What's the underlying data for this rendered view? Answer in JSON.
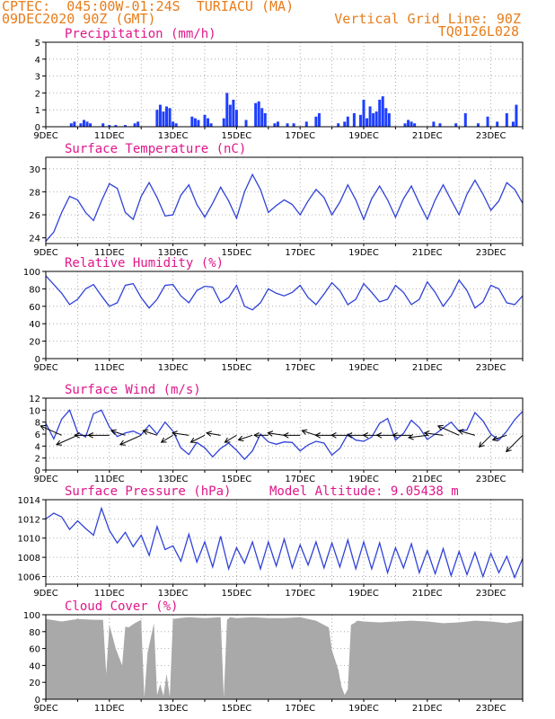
{
  "header": {
    "line1": "CPTEC:  045:00W-01:24S  TURIACU (MA)",
    "line2": "09DEC2020 90Z (GMT)",
    "right1": "Vertical Grid Line: 90Z",
    "right2": "TQ0126L028"
  },
  "colors": {
    "header": "#e87d1a",
    "title": "#e0178a",
    "line": "#2f42d8",
    "bar": "#1f3fff",
    "cloud": "#a9a9a9",
    "arrow": "#000000"
  },
  "x_tick_labels": [
    "9DEC",
    "11DEC",
    "13DEC",
    "15DEC",
    "17DEC",
    "19DEC",
    "21DEC",
    "23DEC"
  ],
  "chart_data": [
    {
      "type": "bar",
      "title": "Precipitation (mm/h)",
      "ylim": [
        0,
        5
      ],
      "yticks": [
        0,
        1,
        2,
        3,
        4,
        5
      ],
      "x_range_days": [
        9,
        24
      ],
      "x": [
        9.8,
        9.9,
        10.1,
        10.2,
        10.3,
        10.4,
        10.8,
        11.0,
        11.2,
        11.5,
        11.8,
        11.9,
        12.5,
        12.6,
        12.7,
        12.8,
        12.9,
        13.0,
        13.1,
        13.6,
        13.7,
        13.8,
        14.0,
        14.1,
        14.2,
        14.6,
        14.7,
        14.8,
        14.9,
        15.0,
        15.3,
        15.6,
        15.7,
        15.8,
        15.9,
        16.2,
        16.3,
        16.6,
        16.8,
        17.2,
        17.5,
        17.6,
        18.2,
        18.4,
        18.5,
        18.7,
        18.9,
        19.0,
        19.1,
        19.2,
        19.3,
        19.4,
        19.5,
        19.6,
        19.7,
        19.8,
        20.3,
        20.4,
        20.5,
        20.6,
        21.2,
        21.4,
        21.9,
        22.2,
        22.6,
        22.9,
        23.2,
        23.5,
        23.7,
        23.8
      ],
      "values": [
        0.2,
        0.3,
        0.2,
        0.4,
        0.3,
        0.2,
        0.2,
        0.1,
        0.1,
        0.1,
        0.2,
        0.3,
        1.0,
        1.3,
        0.9,
        1.2,
        1.1,
        0.3,
        0.2,
        0.6,
        0.5,
        0.4,
        0.7,
        0.5,
        0.2,
        0.5,
        2.0,
        1.3,
        1.6,
        1.0,
        0.4,
        1.4,
        1.5,
        1.1,
        0.8,
        0.2,
        0.3,
        0.2,
        0.2,
        0.3,
        0.6,
        0.8,
        0.2,
        0.3,
        0.6,
        0.8,
        0.7,
        1.6,
        0.5,
        1.2,
        0.8,
        0.9,
        1.6,
        1.8,
        1.1,
        0.8,
        0.2,
        0.4,
        0.3,
        0.2,
        0.3,
        0.2,
        0.2,
        0.8,
        0.2,
        0.6,
        0.3,
        0.8,
        0.3,
        1.3
      ]
    },
    {
      "type": "line",
      "title": "Surface Temperature (nC)",
      "ylim": [
        23.5,
        31
      ],
      "yticks": [
        24,
        26,
        28,
        30
      ],
      "x": [
        9.0,
        9.25,
        9.5,
        9.75,
        10.0,
        10.25,
        10.5,
        10.75,
        11.0,
        11.25,
        11.5,
        11.75,
        12.0,
        12.25,
        12.5,
        12.75,
        13.0,
        13.25,
        13.5,
        13.75,
        14.0,
        14.25,
        14.5,
        14.75,
        15.0,
        15.25,
        15.5,
        15.75,
        16.0,
        16.25,
        16.5,
        16.75,
        17.0,
        17.25,
        17.5,
        17.75,
        18.0,
        18.25,
        18.5,
        18.75,
        19.0,
        19.25,
        19.5,
        19.75,
        20.0,
        20.25,
        20.5,
        20.75,
        21.0,
        21.25,
        21.5,
        21.75,
        22.0,
        22.25,
        22.5,
        22.75,
        23.0,
        23.25,
        23.5,
        23.75,
        24.0
      ],
      "values": [
        23.7,
        24.5,
        26.2,
        27.6,
        27.3,
        26.2,
        25.5,
        27.2,
        28.7,
        28.3,
        26.2,
        25.6,
        27.6,
        28.8,
        27.5,
        25.9,
        26.0,
        27.7,
        28.6,
        26.9,
        25.8,
        27.0,
        28.4,
        27.2,
        25.7,
        28.0,
        29.5,
        28.2,
        26.2,
        26.8,
        27.3,
        26.9,
        26.0,
        27.2,
        28.2,
        27.5,
        26.0,
        27.1,
        28.6,
        27.3,
        25.6,
        27.4,
        28.5,
        27.3,
        25.8,
        27.4,
        28.5,
        27.0,
        25.6,
        27.3,
        28.6,
        27.3,
        26.0,
        27.8,
        29.0,
        27.8,
        26.4,
        27.2,
        28.8,
        28.2,
        27.0
      ]
    },
    {
      "type": "line",
      "title": "Relative Humidity (%)",
      "ylim": [
        0,
        100
      ],
      "yticks": [
        0,
        20,
        40,
        60,
        80,
        100
      ],
      "x": [
        9.0,
        9.25,
        9.5,
        9.75,
        10.0,
        10.25,
        10.5,
        10.75,
        11.0,
        11.25,
        11.5,
        11.75,
        12.0,
        12.25,
        12.5,
        12.75,
        13.0,
        13.25,
        13.5,
        13.75,
        14.0,
        14.25,
        14.5,
        14.75,
        15.0,
        15.25,
        15.5,
        15.75,
        16.0,
        16.25,
        16.5,
        16.75,
        17.0,
        17.25,
        17.5,
        17.75,
        18.0,
        18.25,
        18.5,
        18.75,
        19.0,
        19.25,
        19.5,
        19.75,
        20.0,
        20.25,
        20.5,
        20.75,
        21.0,
        21.25,
        21.5,
        21.75,
        22.0,
        22.25,
        22.5,
        22.75,
        23.0,
        23.25,
        23.5,
        23.75,
        24.0
      ],
      "values": [
        95,
        85,
        75,
        62,
        68,
        80,
        85,
        72,
        60,
        64,
        84,
        86,
        70,
        58,
        68,
        84,
        85,
        72,
        64,
        78,
        83,
        82,
        64,
        70,
        84,
        60,
        56,
        64,
        80,
        75,
        72,
        76,
        84,
        70,
        62,
        74,
        87,
        78,
        62,
        68,
        86,
        76,
        65,
        68,
        84,
        76,
        62,
        68,
        88,
        76,
        60,
        72,
        90,
        78,
        58,
        65,
        84,
        80,
        64,
        62,
        72
      ]
    },
    {
      "type": "line",
      "title": "Surface Wind (m/s)",
      "ylim": [
        0,
        12
      ],
      "yticks": [
        0,
        2,
        4,
        6,
        8,
        10,
        12
      ],
      "x": [
        9.0,
        9.25,
        9.5,
        9.75,
        10.0,
        10.25,
        10.5,
        10.75,
        11.0,
        11.25,
        11.5,
        11.75,
        12.0,
        12.25,
        12.5,
        12.75,
        13.0,
        13.25,
        13.5,
        13.75,
        14.0,
        14.25,
        14.5,
        14.75,
        15.0,
        15.25,
        15.5,
        15.75,
        16.0,
        16.25,
        16.5,
        16.75,
        17.0,
        17.25,
        17.5,
        17.75,
        18.0,
        18.25,
        18.5,
        18.75,
        19.0,
        19.25,
        19.5,
        19.75,
        20.0,
        20.25,
        20.5,
        20.75,
        21.0,
        21.25,
        21.5,
        21.75,
        22.0,
        22.25,
        22.5,
        22.75,
        23.0,
        23.25,
        23.5,
        23.75,
        24.0
      ],
      "values": [
        7.8,
        5.2,
        8.5,
        10.0,
        6.3,
        5.5,
        9.4,
        10.0,
        7.2,
        5.6,
        6.2,
        6.5,
        5.9,
        7.5,
        6.0,
        8.0,
        6.5,
        3.7,
        2.6,
        4.6,
        3.7,
        2.2,
        3.6,
        4.5,
        3.3,
        1.8,
        3.2,
        6.0,
        4.7,
        4.3,
        4.7,
        4.6,
        3.2,
        4.2,
        4.8,
        4.5,
        2.5,
        3.6,
        6.0,
        5.0,
        4.8,
        5.5,
        7.8,
        8.6,
        5.0,
        6.1,
        8.3,
        7.1,
        5.1,
        6.0,
        7.0,
        8.0,
        6.5,
        6.7,
        9.6,
        8.2,
        6.0,
        5.0,
        6.5,
        8.4,
        9.8
      ],
      "barbs_x": [
        9.5,
        10.0,
        10.5,
        11.0,
        11.5,
        12.0,
        12.5,
        13.0,
        13.5,
        14.0,
        14.5,
        15.0,
        15.5,
        16.0,
        16.5,
        17.0,
        17.5,
        18.0,
        18.5,
        19.0,
        19.5,
        20.0,
        20.5,
        21.0,
        21.5,
        22.0,
        22.5,
        23.0,
        23.5,
        24.0
      ],
      "barbs_u": [
        0.9,
        0.9,
        0.8,
        0.9,
        0.6,
        0.9,
        0.6,
        0.5,
        0.7,
        0.6,
        0.6,
        0.5,
        0.6,
        0.6,
        0.7,
        0.7,
        0.6,
        0.7,
        0.7,
        0.7,
        0.7,
        0.8,
        0.8,
        0.8,
        0.8,
        0.9,
        0.7,
        0.5,
        0.6,
        0.7
      ],
      "barbs_v": [
        0.4,
        -0.4,
        0.0,
        0.0,
        0.2,
        -0.4,
        0.2,
        -0.3,
        0.1,
        -0.3,
        0.1,
        -0.3,
        -0.2,
        0.0,
        0.1,
        0.0,
        0.2,
        0.0,
        0.0,
        0.0,
        0.0,
        0.0,
        0.0,
        -0.1,
        0.1,
        0.4,
        0.2,
        -0.5,
        -0.2,
        -0.7
      ]
    },
    {
      "type": "line",
      "title": "Surface Pressure (hPa)",
      "annotation": "Model Altitude: 9.05438  m",
      "ylim": [
        1005.2,
        1014
      ],
      "yticks": [
        1006,
        1008,
        1010,
        1012,
        1014
      ],
      "x": [
        9.0,
        9.25,
        9.5,
        9.75,
        10.0,
        10.25,
        10.5,
        10.75,
        11.0,
        11.25,
        11.5,
        11.75,
        12.0,
        12.25,
        12.5,
        12.75,
        13.0,
        13.25,
        13.5,
        13.75,
        14.0,
        14.25,
        14.5,
        14.75,
        15.0,
        15.25,
        15.5,
        15.75,
        16.0,
        16.25,
        16.5,
        16.75,
        17.0,
        17.25,
        17.5,
        17.75,
        18.0,
        18.25,
        18.5,
        18.75,
        19.0,
        19.25,
        19.5,
        19.75,
        20.0,
        20.25,
        20.5,
        20.75,
        21.0,
        21.25,
        21.5,
        21.75,
        22.0,
        22.25,
        22.5,
        22.75,
        23.0,
        23.25,
        23.5,
        23.75,
        24.0
      ],
      "values": [
        1012.0,
        1012.6,
        1012.2,
        1010.9,
        1011.8,
        1011.0,
        1010.3,
        1013.1,
        1010.8,
        1009.5,
        1010.6,
        1009.1,
        1010.3,
        1008.2,
        1011.2,
        1008.8,
        1009.2,
        1007.6,
        1010.4,
        1007.5,
        1009.6,
        1007.0,
        1010.2,
        1006.8,
        1009.0,
        1007.4,
        1009.6,
        1006.8,
        1009.6,
        1007.1,
        1009.9,
        1006.9,
        1009.3,
        1007.2,
        1009.6,
        1006.9,
        1009.5,
        1007.0,
        1009.8,
        1006.8,
        1009.6,
        1006.8,
        1009.5,
        1006.4,
        1009.0,
        1006.9,
        1009.4,
        1006.4,
        1008.7,
        1006.3,
        1008.9,
        1006.1,
        1008.6,
        1006.2,
        1008.5,
        1006.0,
        1008.4,
        1006.4,
        1008.1,
        1005.9,
        1007.9
      ]
    },
    {
      "type": "area",
      "title": "Cloud Cover (%)",
      "ylim": [
        0,
        100
      ],
      "yticks": [
        0,
        20,
        40,
        60,
        80,
        100
      ],
      "x": [
        9.0,
        9.5,
        10.0,
        10.5,
        10.8,
        10.9,
        11.0,
        11.2,
        11.4,
        11.5,
        11.6,
        11.8,
        12.0,
        12.1,
        12.2,
        12.4,
        12.5,
        12.6,
        12.7,
        12.8,
        12.9,
        13.0,
        13.2,
        13.5,
        14.0,
        14.5,
        14.6,
        14.7,
        14.8,
        15.0,
        15.5,
        16.0,
        16.5,
        17.0,
        17.5,
        17.9,
        18.0,
        18.2,
        18.3,
        18.4,
        18.5,
        18.6,
        18.7,
        18.8,
        19.0,
        19.5,
        20.0,
        20.5,
        21.0,
        21.5,
        22.0,
        22.5,
        23.0,
        23.5,
        24.0
      ],
      "values": [
        95,
        92,
        95,
        94,
        94,
        30,
        88,
        60,
        40,
        86,
        85,
        90,
        94,
        2,
        55,
        90,
        5,
        18,
        4,
        30,
        3,
        95,
        96,
        97,
        96,
        97,
        2,
        94,
        97,
        96,
        97,
        96,
        96,
        97,
        93,
        85,
        58,
        35,
        15,
        5,
        12,
        88,
        90,
        93,
        92,
        91,
        92,
        93,
        92,
        90,
        91,
        93,
        92,
        90,
        93
      ]
    }
  ]
}
